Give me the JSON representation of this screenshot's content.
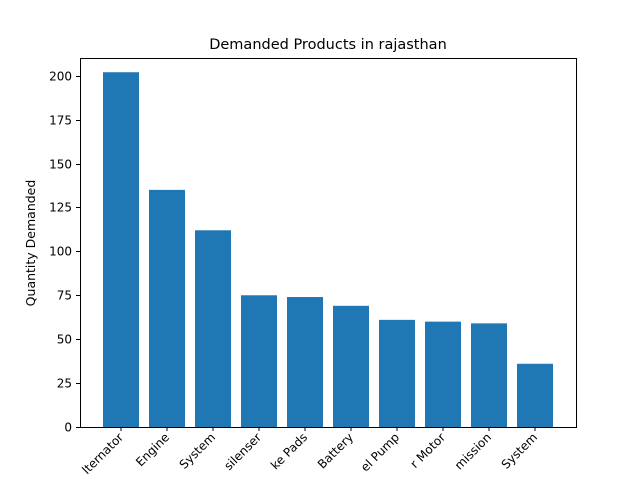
{
  "chart_data": {
    "type": "bar",
    "title": "Demanded Products in rajasthan",
    "xlabel": "",
    "ylabel": "Quantity Demanded",
    "categories": [
      "Alternator",
      "Engine",
      "Brake System",
      "silenser",
      "Brake Pads",
      "Battery",
      "Fuel Pump",
      "Starter Motor",
      "Transmission",
      "Exhaust System"
    ],
    "tick_labels_visible": [
      "lternator",
      "Engine",
      "System",
      "silenser",
      "ke Pads",
      "Battery",
      "el Pump",
      "r Motor",
      "mission",
      "System"
    ],
    "values": [
      202,
      135,
      112,
      75,
      74,
      69,
      61,
      60,
      59,
      36
    ],
    "ylim": [
      0,
      210.1
    ],
    "yticks": [
      0,
      25,
      50,
      75,
      100,
      125,
      150,
      175,
      200
    ],
    "grid": false,
    "color": "#1f77b4"
  }
}
